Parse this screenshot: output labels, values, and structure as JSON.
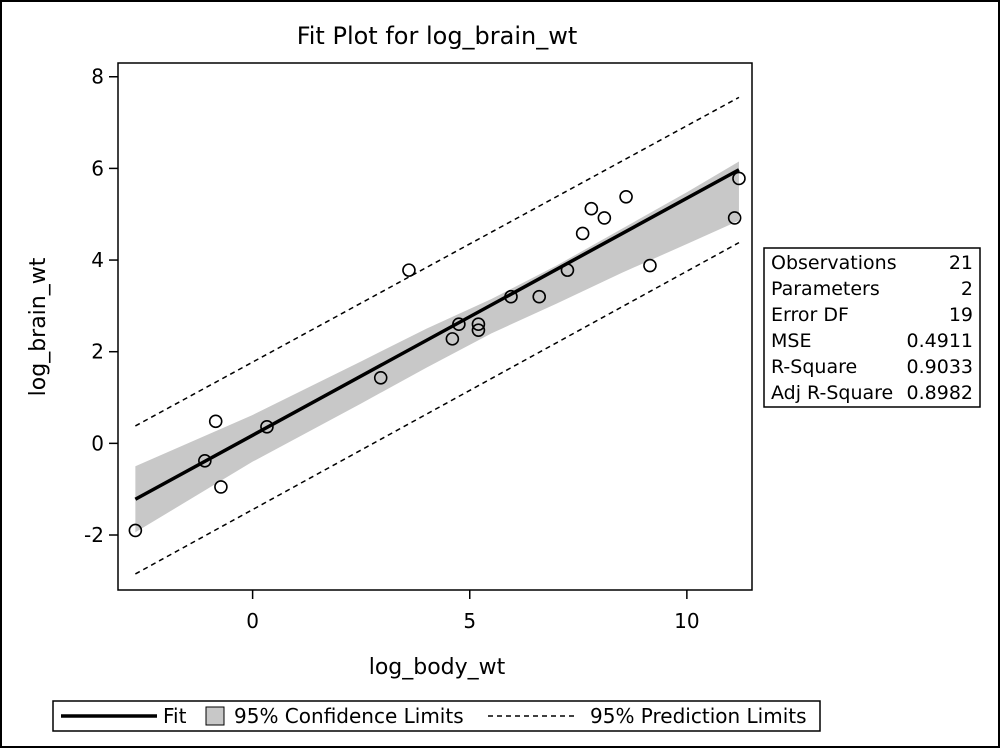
{
  "chart_data": {
    "type": "scatter",
    "title": "Fit Plot for log_brain_wt",
    "xlabel": "log_body_wt",
    "ylabel": "log_brain_wt",
    "xlim": [
      -3.1,
      11.5
    ],
    "ylim": [
      -3.2,
      8.3
    ],
    "x_ticks": [
      0,
      5,
      10
    ],
    "y_ticks": [
      -2,
      0,
      2,
      4,
      6,
      8
    ],
    "grid": false,
    "observations": {
      "name": "Observations",
      "points": [
        {
          "x": -2.7,
          "y": -1.9
        },
        {
          "x": -1.1,
          "y": -0.38
        },
        {
          "x": -0.85,
          "y": 0.48
        },
        {
          "x": -0.73,
          "y": -0.95
        },
        {
          "x": 0.33,
          "y": 0.36
        },
        {
          "x": 2.95,
          "y": 1.43
        },
        {
          "x": 3.6,
          "y": 3.78
        },
        {
          "x": 4.6,
          "y": 2.28
        },
        {
          "x": 4.75,
          "y": 2.6
        },
        {
          "x": 5.2,
          "y": 2.47
        },
        {
          "x": 5.2,
          "y": 2.6
        },
        {
          "x": 5.95,
          "y": 3.2
        },
        {
          "x": 6.6,
          "y": 3.2
        },
        {
          "x": 7.25,
          "y": 3.78
        },
        {
          "x": 7.6,
          "y": 4.58
        },
        {
          "x": 7.8,
          "y": 5.12
        },
        {
          "x": 8.1,
          "y": 4.92
        },
        {
          "x": 8.6,
          "y": 5.38
        },
        {
          "x": 9.15,
          "y": 3.88
        },
        {
          "x": 11.1,
          "y": 4.92
        },
        {
          "x": 11.2,
          "y": 5.78
        }
      ]
    },
    "fit": {
      "name": "Fit",
      "x": [
        -2.7,
        11.2
      ],
      "y": [
        -1.22,
        5.97
      ]
    },
    "confidence_limits": {
      "name": "95% Confidence Limits",
      "x": [
        -2.7,
        0.0,
        2.5,
        4.0,
        5.5,
        7.0,
        8.5,
        10.0,
        11.2
      ],
      "upper": [
        -0.5,
        0.62,
        1.79,
        2.5,
        3.15,
        3.88,
        4.68,
        5.48,
        6.15
      ],
      "lower": [
        -1.94,
        -0.4,
        0.87,
        1.65,
        2.4,
        3.05,
        3.72,
        4.35,
        4.86
      ]
    },
    "prediction_limits": {
      "name": "95% Prediction Limits",
      "x": [
        -2.7,
        11.2
      ],
      "upper": [
        0.38,
        7.55
      ],
      "lower": [
        -2.85,
        4.38
      ]
    },
    "legend": {
      "position": "bottom",
      "items": [
        {
          "label": "Fit",
          "symbol": "solid-line"
        },
        {
          "label": "95% Confidence Limits",
          "symbol": "gray-band"
        },
        {
          "label": "95% Prediction Limits",
          "symbol": "dashed-line"
        }
      ]
    },
    "stats_table": {
      "position": "right",
      "rows": [
        {
          "label": "Observations",
          "value": "21"
        },
        {
          "label": "Parameters",
          "value": "2"
        },
        {
          "label": "Error DF",
          "value": "19"
        },
        {
          "label": "MSE",
          "value": "0.4911"
        },
        {
          "label": "R-Square",
          "value": "0.9033"
        },
        {
          "label": "Adj R-Square",
          "value": "0.8982"
        }
      ]
    },
    "colors": {
      "band": "#c8c8c8",
      "line": "#000000",
      "marker": "#000000"
    }
  }
}
